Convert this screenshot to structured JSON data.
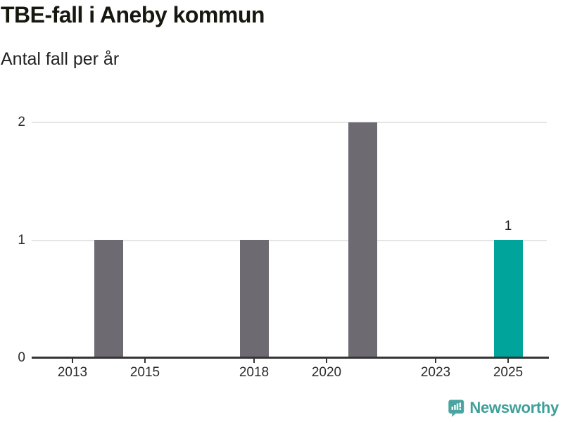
{
  "header": {
    "title": "TBE-fall i Aneby kommun",
    "subtitle": "Antal fall per år"
  },
  "chart_data": {
    "type": "bar",
    "title": "TBE-fall i Aneby kommun",
    "subtitle": "Antal fall per år",
    "xlabel": "",
    "ylabel": "Antal fall per år",
    "x": [
      2013,
      2014,
      2015,
      2016,
      2017,
      2018,
      2019,
      2020,
      2021,
      2022,
      2023,
      2024,
      2025
    ],
    "values": [
      0,
      1,
      0,
      0,
      0,
      1,
      0,
      0,
      2,
      0,
      0,
      0,
      1
    ],
    "x_ticks": [
      2013,
      2015,
      2018,
      2020,
      2023,
      2025
    ],
    "y_ticks": [
      0,
      1,
      2
    ],
    "ylim": [
      0,
      2
    ],
    "grid": "horizontal",
    "legend": "none",
    "bar_color": "#6d6a72",
    "highlight_color": "#00a49b",
    "highlight_x": 2025,
    "annotations": [
      {
        "x": 2025,
        "text": "1"
      }
    ]
  },
  "footer": {
    "brand": "Newsworthy",
    "brand_color": "#3f9f99",
    "logo_icon": "newsworthy-bar-chart-bubble-icon"
  }
}
